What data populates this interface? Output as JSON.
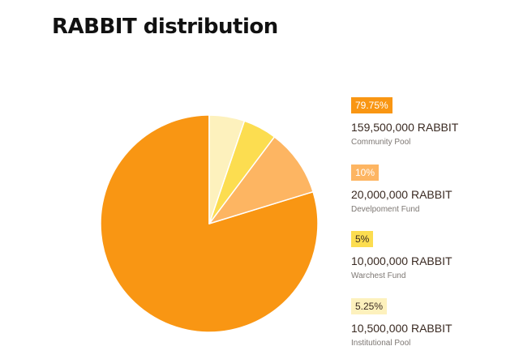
{
  "title": "RABBIT distribution",
  "chart_data": {
    "type": "pie",
    "slices": [
      {
        "label": "Community Pool",
        "percent_label": "79.75%",
        "amount_label": "159,500,000 RABBIT",
        "value": 79.75,
        "color": "#f99613",
        "badge_text_color": "#ffffff"
      },
      {
        "label": "Develpoment Fund",
        "percent_label": "10%",
        "amount_label": "20,000,000 RABBIT",
        "value": 10,
        "color": "#fdb562",
        "badge_text_color": "#ffffff"
      },
      {
        "label": "Warchest Fund",
        "percent_label": "5%",
        "amount_label": "10,000,000 RABBIT",
        "value": 5,
        "color": "#fcdd50",
        "badge_text_color": "#3a2a22"
      },
      {
        "label": "Institutional Pool",
        "percent_label": "5.25%",
        "amount_label": "10,500,000 RABBIT",
        "value": 5.25,
        "color": "#fdf1bd",
        "badge_text_color": "#3a2a22"
      }
    ],
    "start_angle_deg": 90,
    "direction": "counterclockwise",
    "legend_position": "right"
  }
}
